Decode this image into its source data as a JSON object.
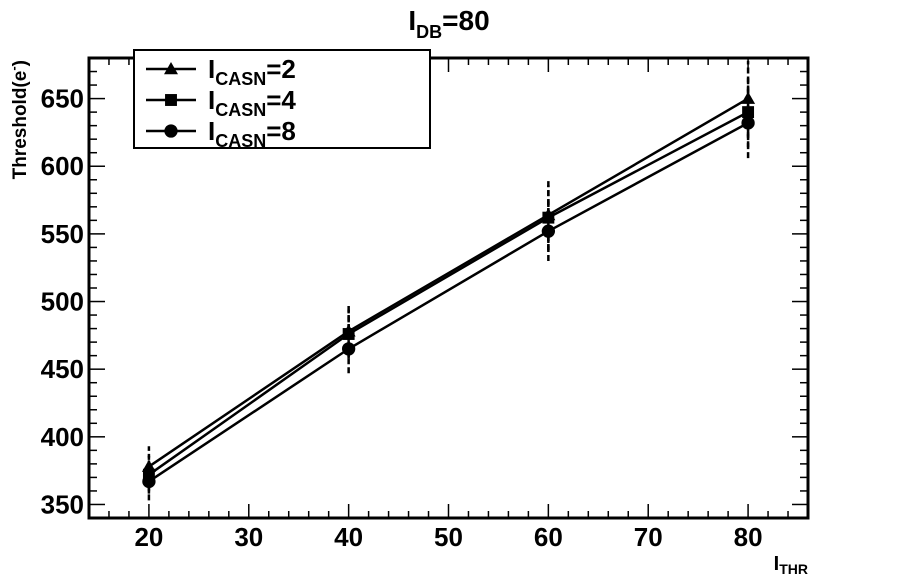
{
  "chart_data": {
    "type": "line",
    "title": {
      "main": "I",
      "sub": "DB",
      "suffix": "=80"
    },
    "xlabel": {
      "main": "I",
      "sub": "THR"
    },
    "ylabel": {
      "main": "Threshold(e",
      "sup": "-",
      "suffix": ")"
    },
    "xlim": [
      14,
      86
    ],
    "ylim": [
      340,
      680
    ],
    "xticks": [
      20,
      30,
      40,
      50,
      60,
      70,
      80
    ],
    "yticks": [
      350,
      400,
      450,
      500,
      550,
      600,
      650
    ],
    "x": [
      20,
      40,
      60,
      80
    ],
    "grid": false,
    "legend_position": "top-left",
    "series": [
      {
        "name": {
          "main": "I",
          "sub": "CASN",
          "suffix": "=2"
        },
        "marker": "triangle",
        "values": [
          378,
          478,
          564,
          650
        ],
        "errors": [
          15,
          19,
          26,
          28
        ]
      },
      {
        "name": {
          "main": "I",
          "sub": "CASN",
          "suffix": "=4"
        },
        "marker": "square",
        "values": [
          372,
          476,
          562,
          640
        ],
        "errors": [
          14,
          18,
          24,
          26
        ]
      },
      {
        "name": {
          "main": "I",
          "sub": "CASN",
          "suffix": "=8"
        },
        "marker": "circle",
        "values": [
          367,
          465,
          552,
          632
        ],
        "errors": [
          14,
          18,
          22,
          26
        ]
      }
    ]
  }
}
